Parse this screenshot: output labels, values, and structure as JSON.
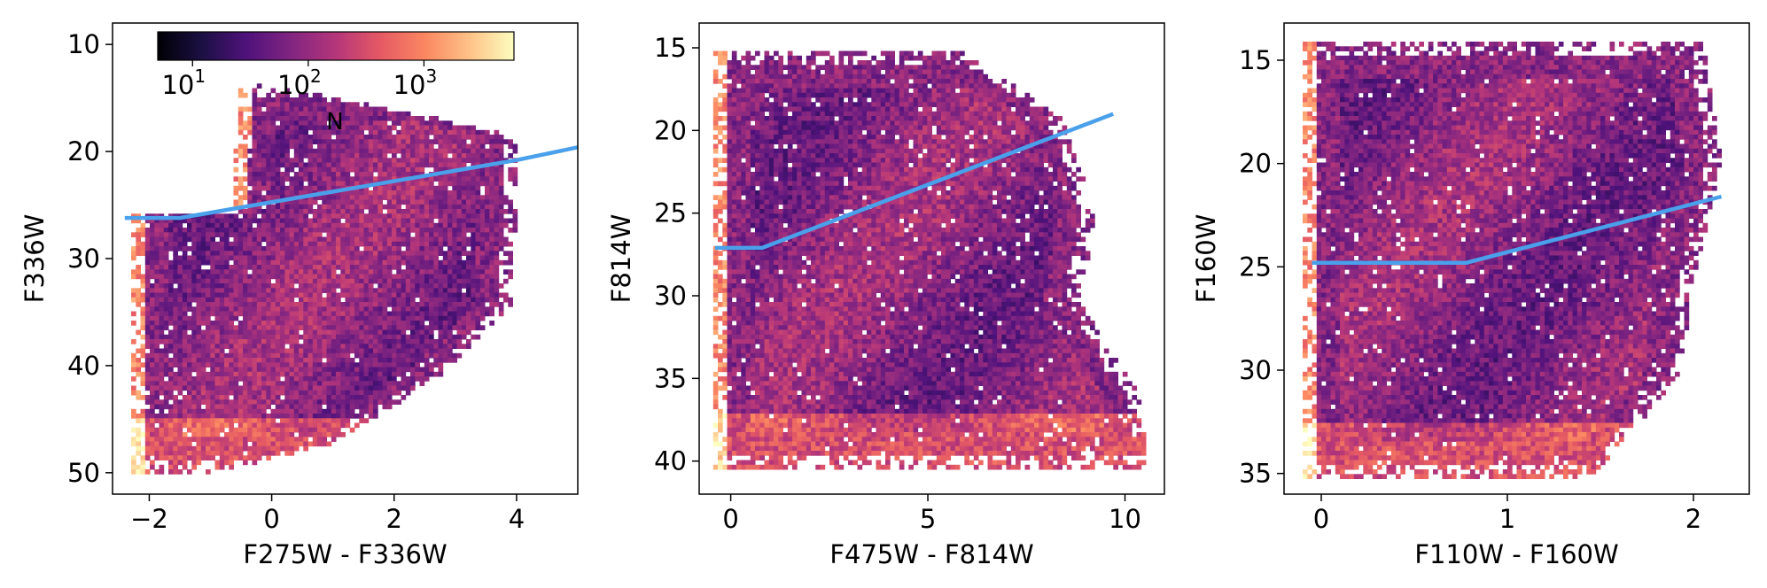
{
  "theme": {
    "line_color": "#4aa0ea",
    "colormap": [
      "#000004",
      "#1c1044",
      "#4f127b",
      "#812581",
      "#b5367a",
      "#e55964",
      "#fb8761",
      "#fec287",
      "#fcfdbf"
    ]
  },
  "colorbar": {
    "label": "N",
    "scale": "log",
    "range": [
      5,
      6000
    ],
    "ticks": [
      {
        "value": 10,
        "base": "10",
        "exp": "1"
      },
      {
        "value": 100,
        "base": "10",
        "exp": "2"
      },
      {
        "value": 1000,
        "base": "10",
        "exp": "3"
      }
    ]
  },
  "chart_data": [
    {
      "type": "heatmap",
      "xlabel": "F275W - F336W",
      "ylabel": "F336W",
      "xlim": [
        -2.6,
        5.0
      ],
      "ylim": [
        52,
        8
      ],
      "y_inverted": true,
      "xticks": [
        -2,
        0,
        2,
        4
      ],
      "yticks": [
        10,
        20,
        30,
        40,
        50
      ],
      "xtick_labels": [
        "−2",
        "0",
        "2",
        "4"
      ],
      "ytick_labels": [
        "10",
        "20",
        "30",
        "40",
        "50"
      ],
      "cut_line": {
        "x": [
          -2.4,
          -1.5,
          4.0,
          5.0
        ],
        "y": [
          26.2,
          26.2,
          20.8,
          19.6
        ]
      }
    },
    {
      "type": "heatmap",
      "xlabel": "F475W - F814W",
      "ylabel": "F814W",
      "xlim": [
        -0.8,
        11.0
      ],
      "ylim": [
        42,
        13.5
      ],
      "y_inverted": true,
      "xticks": [
        0,
        5,
        10
      ],
      "yticks": [
        15,
        20,
        25,
        30,
        35,
        40
      ],
      "xtick_labels": [
        "0",
        "5",
        "10"
      ],
      "ytick_labels": [
        "15",
        "20",
        "25",
        "30",
        "35",
        "40"
      ],
      "cut_line": {
        "x": [
          -0.4,
          0.8,
          9.7
        ],
        "y": [
          27.1,
          27.1,
          19.0
        ]
      }
    },
    {
      "type": "heatmap",
      "xlabel": "F110W - F160W",
      "ylabel": "F160W",
      "xlim": [
        -0.2,
        2.3
      ],
      "ylim": [
        36,
        13.2
      ],
      "y_inverted": true,
      "xticks": [
        0,
        1,
        2
      ],
      "yticks": [
        15,
        20,
        25,
        30,
        35
      ],
      "xtick_labels": [
        "0",
        "1",
        "2"
      ],
      "ytick_labels": [
        "15",
        "20",
        "25",
        "30",
        "35"
      ],
      "cut_line": {
        "x": [
          -0.05,
          0.78,
          2.15
        ],
        "y": [
          24.8,
          24.8,
          21.6
        ]
      }
    }
  ]
}
